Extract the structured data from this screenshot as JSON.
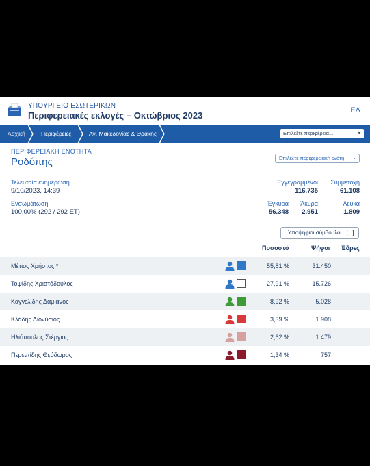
{
  "header": {
    "ministry": "ΥΠΟΥΡΓΕΙΟ ΕΣΩΤΕΡΙΚΩΝ",
    "title": "Περιφερειακές εκλογές – Οκτώβριος 2023",
    "lang": "ΕΛ"
  },
  "breadcrumb": [
    "Αρχική",
    "Περιφέρειες",
    "Αν. Μακεδονίας & Θράκης"
  ],
  "region_select": {
    "placeholder": "Επιλέξτε περιφέρεια..."
  },
  "section": {
    "label": "ΠΕΡΙΦΕΡΕΙΑΚΗ ΕΝΟΤΗΤΑ",
    "name": "Ροδόπης",
    "unit_select": "Επιλέξτε περιφερειακή ενότη"
  },
  "stats": {
    "last_update_label": "Τελευταία ενημέρωση",
    "last_update_value": "9/10/2023, 14:39",
    "integration_label": "Ενσωμάτωση",
    "integration_value": "100,00% (292 / 292 ΕΤ)",
    "registered_label": "Εγγεγραμμένοι",
    "registered_value": "116.735",
    "turnout_label": "Συμμετοχή",
    "turnout_value": "61.108",
    "valid_label": "Έγκυρα",
    "valid_value": "56.348",
    "invalid_label": "Άκυρα",
    "invalid_value": "2.951",
    "blank_label": "Λευκά",
    "blank_value": "1.809"
  },
  "toggle": {
    "label": "Υποψήφιοι σύμβουλοι",
    "checked": false
  },
  "table": {
    "headers": {
      "percent": "Ποσοστό",
      "votes": "Ψήφοι",
      "seats": "Έδρες"
    },
    "rows": [
      {
        "name": "Μέτιος Χρήστος *",
        "percent": "55,81 %",
        "votes": "31.450",
        "seats": "",
        "color": "#2f78c8",
        "outline": false
      },
      {
        "name": "Τοψίδης Χριστόδουλος",
        "percent": "27,91 %",
        "votes": "15.726",
        "seats": "",
        "color": "#2f78c8",
        "outline": true
      },
      {
        "name": "Καγγελίδης Δαμιανός",
        "percent": "8,92 %",
        "votes": "5.028",
        "seats": "",
        "color": "#3f9a3a",
        "outline": false
      },
      {
        "name": "Κλάδης Διονύσιος",
        "percent": "3,39 %",
        "votes": "1.908",
        "seats": "",
        "color": "#d83a3a",
        "outline": false
      },
      {
        "name": "Ηλιόπουλος Στέργιος",
        "percent": "2,62 %",
        "votes": "1.479",
        "seats": "",
        "color": "#d7a0a0",
        "outline": false
      },
      {
        "name": "Περεντίδης Θεόδωρος",
        "percent": "1,34 %",
        "votes": "757",
        "seats": "",
        "color": "#8b1a2c",
        "outline": false
      }
    ]
  },
  "icons": {
    "logo": "ballot-box-icon",
    "person": "person-icon",
    "swatch": "party-color-swatch"
  },
  "colors": {
    "primary": "#1f5ca8",
    "text": "#1f3b66",
    "accent": "#2a64b4",
    "row_shade": "#eef1f4"
  }
}
